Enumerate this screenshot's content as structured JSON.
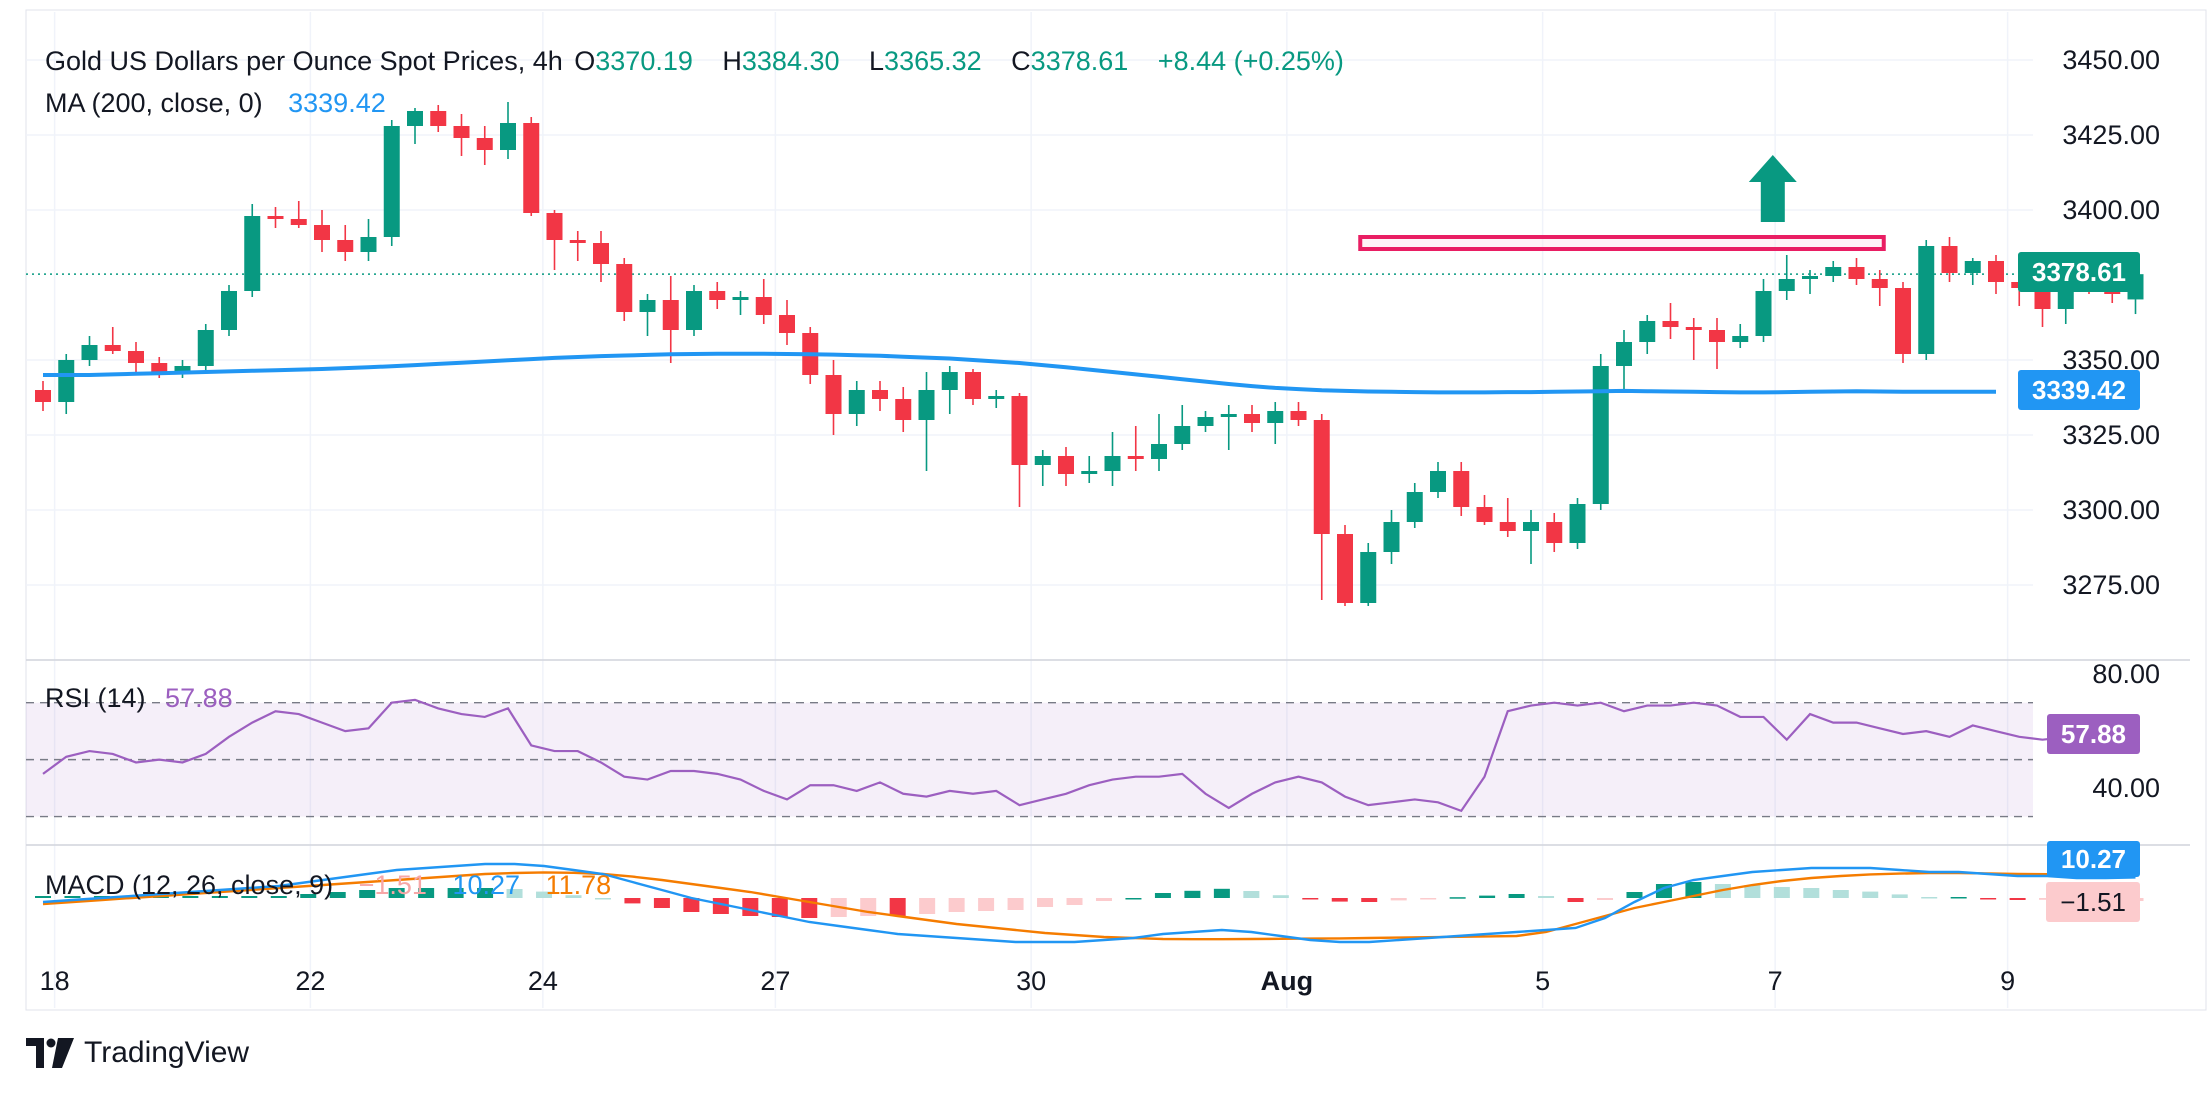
{
  "header": {
    "symbol": "Gold US Dollars per Ounce Spot Prices, 4h",
    "o_label": "O",
    "o": "3370.19",
    "h_label": "H",
    "h": "3384.30",
    "l_label": "L",
    "l": "3365.32",
    "c_label": "C",
    "c": "3378.61",
    "change": "+8.44 (+0.25%)",
    "ma_label": "MA (200, close, 0)",
    "ma_value": "3339.42"
  },
  "rsi_legend": {
    "label": "RSI (14)",
    "value": "57.88"
  },
  "macd_legend": {
    "label": "MACD (12, 26, close, 9)",
    "hist": "−1.51",
    "macd": "10.27",
    "signal": "11.78"
  },
  "price_tags": {
    "last": "3378.61",
    "ma": "3339.42",
    "rsi": "57.88",
    "macd": "10.27",
    "hist": "−1.51"
  },
  "colors": {
    "up": "#089981",
    "down": "#f23645",
    "ma": "#2196f3",
    "rsi": "#9c5fc0",
    "signal": "#f57c00",
    "resistance": "#e91e63",
    "arrow": "#089981"
  },
  "footer": {
    "brand": "TradingView",
    "logo_icon": "tradingview-logo-icon"
  },
  "chart_data": {
    "type": "candlestick",
    "title": "Gold US Dollars per Ounce Spot Prices, 4h",
    "price_axis": {
      "ticks": [
        "3450.00",
        "3425.00",
        "3400.00",
        "3350.00",
        "3325.00",
        "3300.00",
        "3275.00"
      ],
      "range": [
        3250,
        3460
      ]
    },
    "rsi_axis": {
      "ticks": [
        "80.00",
        "40.00"
      ],
      "range": [
        20,
        80
      ],
      "band": [
        30,
        70
      ]
    },
    "x_axis": {
      "labels": [
        {
          "text": "18",
          "at": 0.5
        },
        {
          "text": "22",
          "at": 11.5
        },
        {
          "text": "24",
          "at": 21.5
        },
        {
          "text": "27",
          "at": 31.5
        },
        {
          "text": "30",
          "at": 42.5
        },
        {
          "text": "Aug",
          "at": 53.5
        },
        {
          "text": "5",
          "at": 64.5
        },
        {
          "text": "7",
          "at": 74.5
        },
        {
          "text": "9",
          "at": 84.5
        }
      ]
    },
    "resistance_zone": {
      "from_bar": 57,
      "to_bar": 79,
      "low": 3387,
      "high": 3391
    },
    "arrow": {
      "bar": 74.4,
      "price": 3400,
      "direction": "up"
    },
    "last_price": 3378.61,
    "candles": [
      [
        3340,
        3343,
        3333,
        3336
      ],
      [
        3336,
        3352,
        3332,
        3350
      ],
      [
        3350,
        3358,
        3348,
        3355
      ],
      [
        3355,
        3361,
        3352,
        3353
      ],
      [
        3353,
        3356,
        3345,
        3349
      ],
      [
        3349,
        3351,
        3344,
        3346
      ],
      [
        3346,
        3350,
        3344,
        3348
      ],
      [
        3348,
        3362,
        3346,
        3360
      ],
      [
        3360,
        3375,
        3358,
        3373
      ],
      [
        3373,
        3402,
        3371,
        3398
      ],
      [
        3398,
        3401,
        3394,
        3397
      ],
      [
        3397,
        3403,
        3394,
        3395
      ],
      [
        3395,
        3400,
        3386,
        3390
      ],
      [
        3390,
        3395,
        3383,
        3386
      ],
      [
        3386,
        3397,
        3383,
        3391
      ],
      [
        3391,
        3430,
        3388,
        3428
      ],
      [
        3428,
        3434,
        3422,
        3433
      ],
      [
        3433,
        3435,
        3426,
        3428
      ],
      [
        3428,
        3432,
        3418,
        3424
      ],
      [
        3424,
        3428,
        3415,
        3420
      ],
      [
        3420,
        3436,
        3417,
        3429
      ],
      [
        3429,
        3431,
        3398,
        3399
      ],
      [
        3399,
        3400,
        3380,
        3390
      ],
      [
        3390,
        3393,
        3383,
        3389
      ],
      [
        3389,
        3393,
        3376,
        3382
      ],
      [
        3382,
        3384,
        3363,
        3366
      ],
      [
        3366,
        3372,
        3358,
        3370
      ],
      [
        3370,
        3378,
        3349,
        3360
      ],
      [
        3360,
        3375,
        3358,
        3373
      ],
      [
        3373,
        3376,
        3367,
        3370
      ],
      [
        3370,
        3373,
        3365,
        3371
      ],
      [
        3371,
        3377,
        3362,
        3365
      ],
      [
        3365,
        3370,
        3355,
        3359
      ],
      [
        3359,
        3361,
        3342,
        3345
      ],
      [
        3345,
        3350,
        3325,
        3332
      ],
      [
        3332,
        3343,
        3328,
        3340
      ],
      [
        3340,
        3343,
        3333,
        3337
      ],
      [
        3337,
        3341,
        3326,
        3330
      ],
      [
        3330,
        3346,
        3313,
        3340
      ],
      [
        3340,
        3348,
        3332,
        3346
      ],
      [
        3346,
        3347,
        3335,
        3337
      ],
      [
        3337,
        3340,
        3334,
        3338
      ],
      [
        3338,
        3339,
        3301,
        3315
      ],
      [
        3315,
        3320,
        3308,
        3318
      ],
      [
        3318,
        3321,
        3308,
        3312
      ],
      [
        3312,
        3318,
        3309,
        3313
      ],
      [
        3313,
        3326,
        3308,
        3318
      ],
      [
        3318,
        3328,
        3313,
        3317
      ],
      [
        3317,
        3332,
        3313,
        3322
      ],
      [
        3322,
        3335,
        3320,
        3328
      ],
      [
        3328,
        3333,
        3326,
        3331
      ],
      [
        3331,
        3335,
        3320,
        3332
      ],
      [
        3332,
        3335,
        3326,
        3329
      ],
      [
        3329,
        3336,
        3322,
        3333
      ],
      [
        3333,
        3336,
        3328,
        3330
      ],
      [
        3330,
        3332,
        3270,
        3292
      ],
      [
        3292,
        3295,
        3268,
        3269
      ],
      [
        3269,
        3289,
        3268,
        3286
      ],
      [
        3286,
        3300,
        3282,
        3296
      ],
      [
        3296,
        3309,
        3294,
        3306
      ],
      [
        3306,
        3316,
        3304,
        3313
      ],
      [
        3313,
        3316,
        3298,
        3301
      ],
      [
        3301,
        3305,
        3295,
        3296
      ],
      [
        3296,
        3304,
        3291,
        3293
      ],
      [
        3293,
        3300,
        3282,
        3296
      ],
      [
        3296,
        3299,
        3286,
        3289
      ],
      [
        3289,
        3304,
        3287,
        3302
      ],
      [
        3302,
        3352,
        3300,
        3348
      ],
      [
        3348,
        3360,
        3339,
        3356
      ],
      [
        3356,
        3365,
        3352,
        3363
      ],
      [
        3363,
        3369,
        3357,
        3361
      ],
      [
        3361,
        3364,
        3350,
        3360
      ],
      [
        3360,
        3364,
        3347,
        3356
      ],
      [
        3356,
        3362,
        3354,
        3358
      ],
      [
        3358,
        3377,
        3356,
        3373
      ],
      [
        3373,
        3385,
        3370,
        3377
      ],
      [
        3377,
        3380,
        3372,
        3378
      ],
      [
        3378,
        3383,
        3376,
        3381
      ],
      [
        3381,
        3384,
        3375,
        3377
      ],
      [
        3377,
        3380,
        3368,
        3374
      ],
      [
        3374,
        3376,
        3349,
        3352
      ],
      [
        3352,
        3390,
        3350,
        3388
      ],
      [
        3388,
        3391,
        3376,
        3379
      ],
      [
        3379,
        3384,
        3375,
        3383
      ],
      [
        3383,
        3385,
        3372,
        3376
      ],
      [
        3376,
        3379,
        3368,
        3374
      ],
      [
        3374,
        3378,
        3361,
        3367
      ],
      [
        3367,
        3382,
        3362,
        3379
      ],
      [
        3379,
        3381,
        3372,
        3374
      ],
      [
        3374,
        3378,
        3369,
        3372
      ],
      [
        3370.19,
        3384.3,
        3365.32,
        3378.61
      ]
    ],
    "ma200": [
      3345,
      3345,
      3345,
      3345.2,
      3345.4,
      3345.6,
      3345.8,
      3346,
      3346.2,
      3346.4,
      3346.6,
      3346.8,
      3347,
      3347.3,
      3347.6,
      3347.9,
      3348.3,
      3348.7,
      3349.1,
      3349.5,
      3349.9,
      3350.3,
      3350.7,
      3351,
      3351.3,
      3351.5,
      3351.7,
      3351.9,
      3352,
      3352.1,
      3352.1,
      3352.1,
      3352,
      3351.9,
      3351.8,
      3351.6,
      3351.4,
      3351.1,
      3350.8,
      3350.5,
      3350,
      3349.5,
      3349,
      3348.3,
      3347.6,
      3346.8,
      3346,
      3345.2,
      3344.4,
      3343.6,
      3342.8,
      3342,
      3341.3,
      3340.7,
      3340.3,
      3339.9,
      3339.7,
      3339.5,
      3339.4,
      3339.3,
      3339.2,
      3339.2,
      3339.2,
      3339.3,
      3339.3,
      3339.4,
      3339.5,
      3339.6,
      3339.7,
      3339.6,
      3339.5,
      3339.4,
      3339.3,
      3339.2,
      3339.2,
      3339.3,
      3339.4,
      3339.5,
      3339.6,
      3339.5,
      3339.4,
      3339.4,
      3339.4,
      3339.4,
      3339.42
    ],
    "rsi": [
      45,
      51,
      53,
      52,
      49,
      50,
      49,
      52,
      58,
      63,
      67,
      66,
      63,
      60,
      61,
      70,
      71,
      68,
      66,
      65,
      68,
      55,
      53,
      53,
      49,
      44,
      43,
      46,
      46,
      45,
      43,
      39,
      36,
      41,
      41,
      39,
      42,
      38,
      37,
      39,
      38,
      39,
      34,
      36,
      38,
      41,
      43,
      44,
      44,
      45,
      38,
      33,
      38,
      42,
      44,
      42,
      37,
      34,
      35,
      36,
      35,
      32,
      44,
      67,
      69,
      70,
      69,
      70,
      67,
      69,
      69,
      70,
      69,
      65,
      65,
      57,
      66,
      63,
      63,
      61,
      59,
      60,
      58,
      62,
      60,
      58,
      57,
      57.88
    ],
    "macd": [
      -2,
      -1,
      0,
      1,
      2,
      3,
      4,
      5,
      6,
      8,
      10,
      12,
      14,
      15,
      16,
      17,
      17,
      16,
      14,
      12,
      8,
      4,
      0,
      -3,
      -6,
      -9,
      -12,
      -14,
      -16,
      -18,
      -19,
      -20,
      -21,
      -22,
      -22,
      -22,
      -21,
      -20,
      -18,
      -17,
      -16,
      -17,
      -19,
      -21,
      -22,
      -22,
      -21,
      -20,
      -19,
      -18,
      -17,
      -16,
      -15,
      -10,
      -2,
      5,
      9,
      11,
      13,
      14,
      15,
      15,
      15,
      14,
      13,
      13,
      12,
      11,
      11,
      10,
      10,
      10.27
    ],
    "signal": [
      -3,
      -2,
      -1,
      0,
      1,
      2,
      3,
      4,
      5,
      6,
      7,
      8,
      9,
      10,
      11,
      12,
      12.5,
      12.8,
      12.6,
      12,
      10.7,
      9,
      7,
      5,
      3,
      0.5,
      -2,
      -4.5,
      -7,
      -9,
      -11,
      -13,
      -14.5,
      -16,
      -17.5,
      -18.5,
      -19.5,
      -20,
      -20.5,
      -20.6,
      -20.6,
      -20.5,
      -20.4,
      -20.3,
      -20.2,
      -20,
      -19.8,
      -19.6,
      -19.4,
      -19.2,
      -19,
      -17,
      -13,
      -9,
      -5,
      -2,
      1,
      4,
      6.5,
      8.5,
      10,
      11,
      11.8,
      12.2,
      12.5,
      12.5,
      12.3,
      12,
      11.9,
      11.8,
      11.78,
      11.78
    ]
  }
}
